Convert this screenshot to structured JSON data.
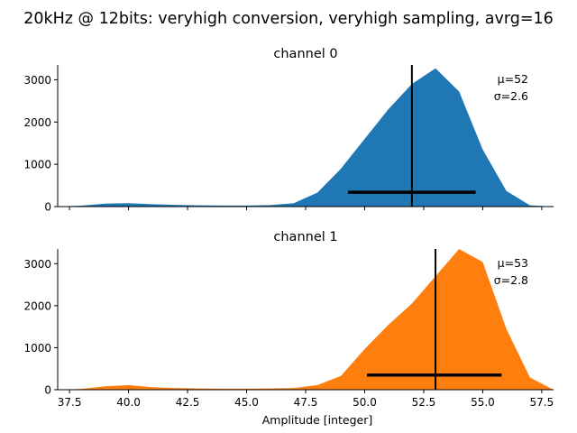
{
  "figure": {
    "suptitle": "20kHz @ 12bits: veryhigh conversion, veryhigh sampling, avrg=16",
    "xlabel": "Amplitude [integer]"
  },
  "chart_data": [
    {
      "type": "area",
      "title": "channel 0",
      "color": "#1f77b4",
      "x": [
        37,
        38,
        39,
        40,
        41,
        42,
        43,
        44,
        45,
        46,
        47,
        48,
        49,
        50,
        51,
        52,
        53,
        54,
        55,
        56,
        57,
        58
      ],
      "y": [
        0,
        20,
        70,
        80,
        55,
        40,
        30,
        25,
        25,
        35,
        80,
        330,
        900,
        1600,
        2300,
        2900,
        3270,
        2720,
        1350,
        370,
        30,
        0
      ],
      "xlim": [
        37,
        58
      ],
      "ylim": [
        0,
        3350
      ],
      "xticks": [
        "37.5",
        "40.0",
        "42.5",
        "45.0",
        "47.5",
        "50.0",
        "52.5",
        "55.0",
        "57.5"
      ],
      "xtick_values": [
        37.5,
        40.0,
        42.5,
        45.0,
        47.5,
        50.0,
        52.5,
        55.0,
        57.5
      ],
      "yticks": [
        "0",
        "1000",
        "2000",
        "3000"
      ],
      "ytick_values": [
        0,
        1000,
        2000,
        3000
      ],
      "mean": 52,
      "std": 2.6,
      "mean_line_ymax": 3350,
      "std_bar": {
        "y": 340,
        "from": 49.3,
        "to": 54.7
      },
      "annotations": [
        "μ=52",
        "σ=2.6"
      ],
      "show_xtick_labels": false
    },
    {
      "type": "area",
      "title": "channel 1",
      "color": "#ff7f0e",
      "x": [
        37,
        38,
        39,
        40,
        41,
        42,
        43,
        44,
        45,
        46,
        47,
        48,
        49,
        50,
        51,
        52,
        53,
        54,
        55,
        56,
        57,
        58
      ],
      "y": [
        0,
        20,
        80,
        110,
        60,
        40,
        30,
        25,
        25,
        30,
        40,
        110,
        330,
        970,
        1540,
        2050,
        2700,
        3350,
        3040,
        1450,
        290,
        0
      ],
      "xlim": [
        37,
        58
      ],
      "ylim": [
        0,
        3350
      ],
      "xticks": [
        "37.5",
        "40.0",
        "42.5",
        "45.0",
        "47.5",
        "50.0",
        "52.5",
        "55.0",
        "57.5"
      ],
      "xtick_values": [
        37.5,
        40.0,
        42.5,
        45.0,
        47.5,
        50.0,
        52.5,
        55.0,
        57.5
      ],
      "yticks": [
        "0",
        "1000",
        "2000",
        "3000"
      ],
      "ytick_values": [
        0,
        1000,
        2000,
        3000
      ],
      "mean": 53,
      "std": 2.8,
      "mean_line_ymax": 3350,
      "std_bar": {
        "y": 350,
        "from": 50.1,
        "to": 55.8
      },
      "annotations": [
        "μ=53",
        "σ=2.8"
      ],
      "show_xtick_labels": true
    }
  ]
}
